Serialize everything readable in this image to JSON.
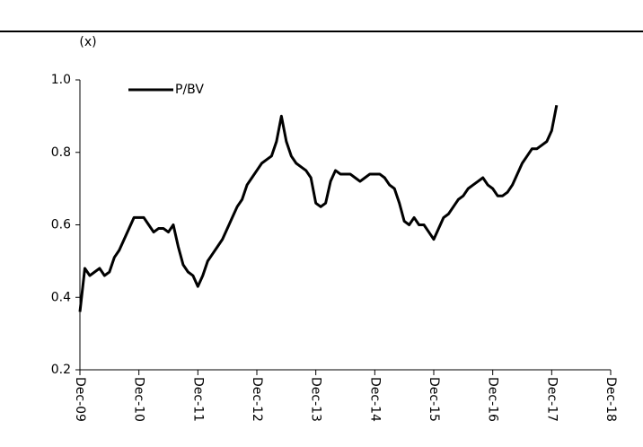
{
  "chart_data": {
    "type": "line",
    "y_axis_label": "(x)",
    "x": [
      "2009-12",
      "2010-01",
      "2010-02",
      "2010-03",
      "2010-04",
      "2010-05",
      "2010-06",
      "2010-07",
      "2010-08",
      "2010-09",
      "2010-10",
      "2010-11",
      "2010-12",
      "2011-01",
      "2011-02",
      "2011-03",
      "2011-04",
      "2011-05",
      "2011-06",
      "2011-07",
      "2011-08",
      "2011-09",
      "2011-10",
      "2011-11",
      "2011-12",
      "2012-01",
      "2012-02",
      "2012-03",
      "2012-04",
      "2012-05",
      "2012-06",
      "2012-07",
      "2012-08",
      "2012-09",
      "2012-10",
      "2012-11",
      "2012-12",
      "2013-01",
      "2013-02",
      "2013-03",
      "2013-04",
      "2013-05",
      "2013-06",
      "2013-07",
      "2013-08",
      "2013-09",
      "2013-10",
      "2013-11",
      "2013-12",
      "2014-01",
      "2014-02",
      "2014-03",
      "2014-04",
      "2014-05",
      "2014-06",
      "2014-07",
      "2014-08",
      "2014-09",
      "2014-10",
      "2014-11",
      "2014-12",
      "2015-01",
      "2015-02",
      "2015-03",
      "2015-04",
      "2015-05",
      "2015-06",
      "2015-07",
      "2015-08",
      "2015-09",
      "2015-10",
      "2015-11",
      "2015-12",
      "2016-01",
      "2016-02",
      "2016-03",
      "2016-04",
      "2016-05",
      "2016-06",
      "2016-07",
      "2016-08",
      "2016-09",
      "2016-10",
      "2016-11",
      "2016-12",
      "2017-01",
      "2017-02",
      "2017-03",
      "2017-04",
      "2017-05",
      "2017-06",
      "2017-07",
      "2017-08",
      "2017-09",
      "2017-10",
      "2017-11",
      "2017-12",
      "2018-01"
    ],
    "series": [
      {
        "name": "P/BV",
        "color": "#000000",
        "values": [
          0.36,
          0.48,
          0.46,
          0.47,
          0.48,
          0.46,
          0.47,
          0.51,
          0.53,
          0.56,
          0.59,
          0.62,
          0.62,
          0.62,
          0.6,
          0.58,
          0.59,
          0.59,
          0.58,
          0.6,
          0.54,
          0.49,
          0.47,
          0.46,
          0.43,
          0.46,
          0.5,
          0.52,
          0.54,
          0.56,
          0.59,
          0.62,
          0.65,
          0.67,
          0.71,
          0.73,
          0.75,
          0.77,
          0.78,
          0.79,
          0.83,
          0.9,
          0.83,
          0.79,
          0.77,
          0.76,
          0.75,
          0.73,
          0.66,
          0.65,
          0.66,
          0.72,
          0.75,
          0.74,
          0.74,
          0.74,
          0.73,
          0.72,
          0.73,
          0.74,
          0.74,
          0.74,
          0.73,
          0.71,
          0.7,
          0.66,
          0.61,
          0.6,
          0.62,
          0.6,
          0.6,
          0.58,
          0.56,
          0.59,
          0.62,
          0.63,
          0.65,
          0.67,
          0.68,
          0.7,
          0.71,
          0.72,
          0.73,
          0.71,
          0.7,
          0.68,
          0.68,
          0.69,
          0.71,
          0.74,
          0.77,
          0.79,
          0.81,
          0.81,
          0.82,
          0.83,
          0.86,
          0.93
        ]
      }
    ],
    "xlim": [
      "2009-12",
      "2018-12"
    ],
    "xticks": [
      {
        "value": "2009-12",
        "label": "Dec-09"
      },
      {
        "value": "2010-12",
        "label": "Dec-10"
      },
      {
        "value": "2011-12",
        "label": "Dec-11"
      },
      {
        "value": "2012-12",
        "label": "Dec-12"
      },
      {
        "value": "2013-12",
        "label": "Dec-13"
      },
      {
        "value": "2014-12",
        "label": "Dec-14"
      },
      {
        "value": "2015-12",
        "label": "Dec-15"
      },
      {
        "value": "2016-12",
        "label": "Dec-16"
      },
      {
        "value": "2017-12",
        "label": "Dec-17"
      },
      {
        "value": "2018-12",
        "label": "Dec-18"
      }
    ],
    "ylim": [
      0.2,
      1.0
    ],
    "yticks": [
      0.2,
      0.4,
      0.6,
      0.8,
      {
        "value": 1.0,
        "label": "1.0"
      }
    ],
    "grid": false,
    "legend": "upper left"
  }
}
